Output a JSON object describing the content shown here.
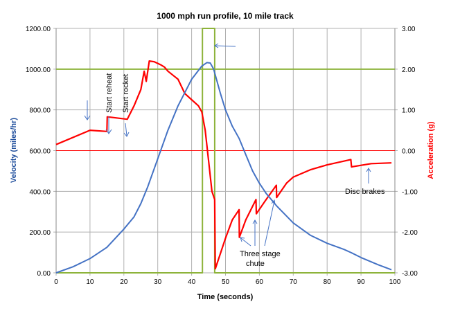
{
  "chart_data": {
    "type": "line",
    "title": "1000 mph run profile, 10 mile track",
    "xlabel": "Time (seconds)",
    "ylabel": "Velocity (miles/hr)",
    "y2label": "Acceleration (g)",
    "xlim": [
      0,
      100
    ],
    "ylim": [
      0,
      1200
    ],
    "y2lim": [
      -3,
      3
    ],
    "grid": true,
    "x_ticks": [
      "0",
      "10",
      "20",
      "30",
      "40",
      "50",
      "60",
      "70",
      "80",
      "90",
      "100"
    ],
    "y_ticks": [
      "0.00",
      "200.00",
      "400.00",
      "600.00",
      "800.00",
      "1000.00",
      "1200.00"
    ],
    "y2_ticks": [
      "-3.00",
      "-2.00",
      "-1.00",
      "0.00",
      "1.00",
      "2.00",
      "3.00"
    ],
    "colors": {
      "velocity": "#4472c4",
      "acceleration": "#ff0000",
      "marker": "#8db33a",
      "axis_label_left": "#1f4e9c",
      "axis_label_right": "#ff0000"
    },
    "series": [
      {
        "axis": "left",
        "color": "#4472c4",
        "x": [
          0,
          5,
          10,
          15,
          20,
          23,
          25,
          27,
          30,
          33,
          36,
          40,
          43,
          44.5,
          45.5,
          46.5,
          47.5,
          48.5,
          50,
          52,
          54,
          56,
          58,
          60,
          62,
          65,
          70,
          75,
          80,
          85,
          87,
          90,
          95,
          99
        ],
        "y": [
          0,
          30,
          70,
          125,
          215,
          275,
          340,
          420,
          560,
          700,
          820,
          950,
          1015,
          1032,
          1030,
          1000,
          940,
          880,
          800,
          720,
          660,
          580,
          500,
          440,
          390,
          330,
          245,
          185,
          145,
          115,
          100,
          75,
          40,
          15
        ]
      },
      {
        "axis": "right",
        "color": "#ff0000",
        "x": [
          0,
          10,
          15,
          15.1,
          21,
          23,
          25,
          26,
          26.6,
          27.5,
          29,
          31,
          32,
          33,
          36,
          38,
          40,
          42,
          43,
          44,
          45,
          46,
          46.8,
          47,
          50,
          52,
          54,
          54.1,
          56,
          59,
          59.1,
          62,
          65,
          65.1,
          68,
          70,
          75,
          80,
          87,
          87.2,
          93,
          99
        ],
        "y": [
          0.15,
          0.5,
          0.47,
          0.83,
          0.77,
          1.1,
          1.5,
          1.95,
          1.7,
          2.2,
          2.18,
          2.1,
          2.05,
          1.95,
          1.75,
          1.4,
          1.25,
          1.1,
          0.95,
          0.5,
          -0.25,
          -1.0,
          -1.2,
          -2.9,
          -2.15,
          -1.7,
          -1.45,
          -2.13,
          -1.7,
          -1.2,
          -1.55,
          -1.2,
          -0.85,
          -1.15,
          -0.8,
          -0.65,
          -0.47,
          -0.35,
          -0.22,
          -0.4,
          -0.32,
          -0.3
        ]
      },
      {
        "axis": "left",
        "color": "#8db33a",
        "x": [
          0,
          43.2,
          43.2,
          46.8,
          46.8,
          100
        ],
        "y": [
          0,
          0,
          1200,
          1200,
          0,
          0
        ]
      }
    ],
    "reference_lines": [
      {
        "axis": "left",
        "value": 1000,
        "color": "#8db33a"
      },
      {
        "axis": "right",
        "value": 0,
        "color": "#ff0000"
      }
    ],
    "annotations": {
      "start_reheat": "Start reheat",
      "start_rocket": "Start rocket",
      "chute": [
        "Three stage",
        "chute"
      ],
      "disc_brakes": "Disc brakes"
    }
  }
}
